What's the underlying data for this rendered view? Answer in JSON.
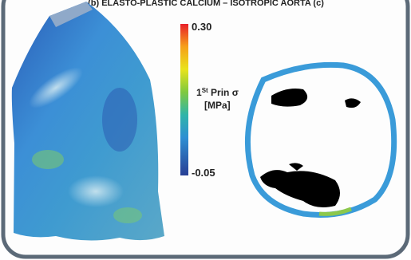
{
  "header": {
    "title": "(b) ELASTO-PLASTIC CALCIUM – ISOTROPIC AORTA (c)"
  },
  "colorbar": {
    "max": "0.30",
    "min": "-0.05",
    "label": {
      "number": "1",
      "superscript": "St",
      "text": " Prin σ",
      "unit": "[MPa]"
    }
  }
}
